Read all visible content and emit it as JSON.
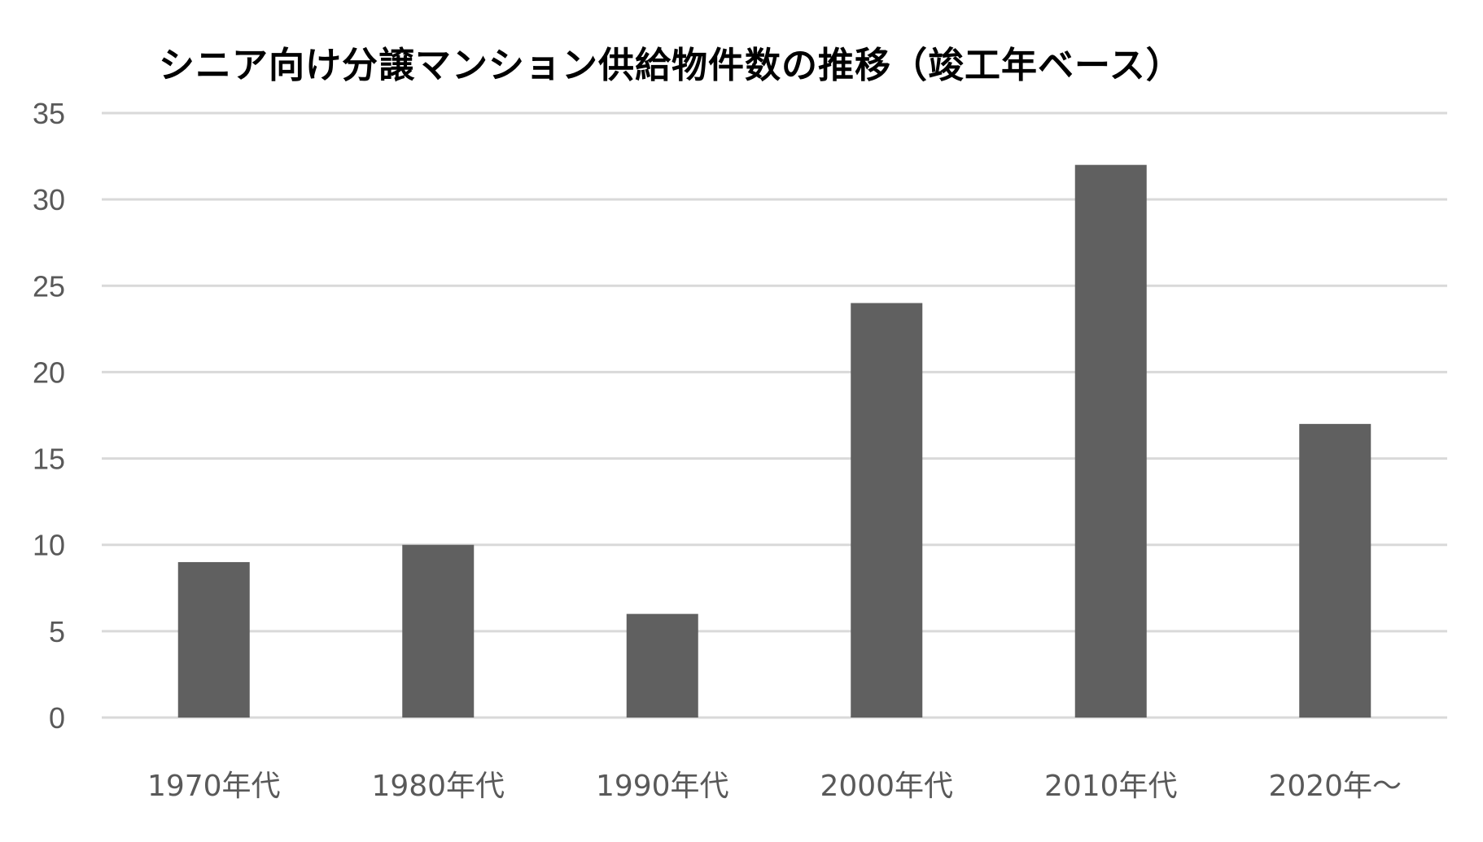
{
  "title": "シニア向け分譲マンション供給物件数の推移（竣工年ベース）",
  "chart_data": {
    "type": "bar",
    "title": "シニア向け分譲マンション供給物件数の推移（竣工年ベース）",
    "categories": [
      "1970年代",
      "1980年代",
      "1990年代",
      "2000年代",
      "2010年代",
      "2020年～"
    ],
    "values": [
      9,
      10,
      6,
      24,
      32,
      17
    ],
    "xlabel": "",
    "ylabel": "",
    "ylim": [
      0,
      35
    ],
    "yticks": [
      0,
      5,
      10,
      15,
      20,
      25,
      30,
      35
    ],
    "grid": true,
    "legend": "none",
    "bar_color": "#606060",
    "grid_color": "#d9d9d9",
    "tick_color": "#595959"
  }
}
